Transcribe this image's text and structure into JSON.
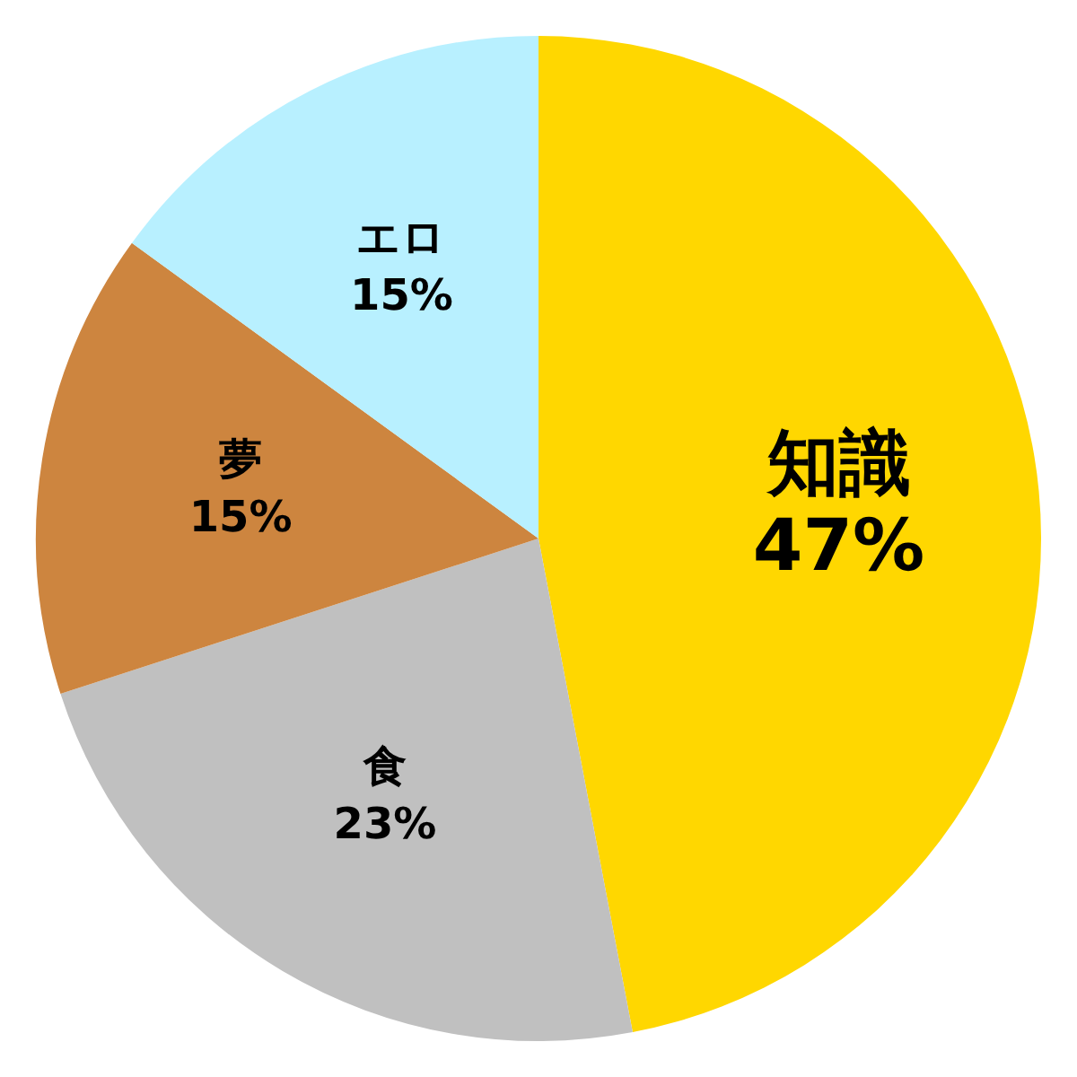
{
  "chart_data": {
    "type": "pie",
    "categories": [
      "知識",
      "食",
      "夢",
      "エロ"
    ],
    "values": [
      47,
      23,
      15,
      15
    ],
    "colors": [
      "#ffd700",
      "#c0c0c0",
      "#cd853f",
      "#b8f0ff"
    ],
    "value_labels": [
      "47%",
      "23%",
      "15%",
      "15%"
    ]
  }
}
